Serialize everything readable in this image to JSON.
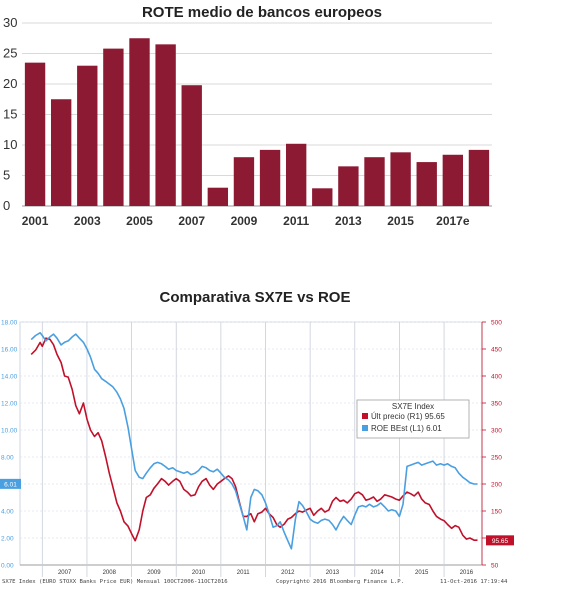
{
  "chart_data": [
    {
      "type": "bar",
      "title": "ROTE medio de bancos europeos",
      "categories": [
        "2001",
        "2002",
        "2003",
        "2004",
        "2005",
        "2006",
        "2007",
        "2008",
        "2009",
        "2010",
        "2011",
        "2012",
        "2013",
        "2014",
        "2015",
        "2016",
        "2017e",
        "2018e"
      ],
      "x_tick_labels": [
        "2001",
        "2003",
        "2005",
        "2007",
        "2009",
        "2011",
        "2013",
        "2015",
        "2017e"
      ],
      "values": [
        23.5,
        17.5,
        23.0,
        25.8,
        27.5,
        26.5,
        19.8,
        3.0,
        8.0,
        9.2,
        10.2,
        2.9,
        6.5,
        8.0,
        8.8,
        7.2,
        8.4,
        9.2
      ],
      "ylim": [
        0,
        30
      ],
      "yticks": [
        0,
        5,
        10,
        15,
        20,
        25,
        30
      ],
      "grid": true,
      "color": "#8b1a32"
    },
    {
      "type": "line",
      "title": "Comparativa SX7E vs ROE",
      "left_axis": {
        "ylim": [
          0,
          18
        ],
        "ticks": [
          "0.00",
          "2.00",
          "4.00",
          "6.00",
          "8.00",
          "10.00",
          "12.00",
          "14.00",
          "16.00",
          "18.00"
        ],
        "color": "#4a9fe0",
        "current_label": "6.01"
      },
      "right_axis": {
        "ylim": [
          50,
          500
        ],
        "ticks": [
          "50",
          "100",
          "150",
          "200",
          "250",
          "300",
          "350",
          "400",
          "450",
          "500"
        ],
        "color": "#c0102a",
        "current_label": "95.65"
      },
      "x_labels": [
        "2007",
        "2008",
        "2009",
        "2010",
        "2011",
        "2012",
        "2013",
        "2014",
        "2015",
        "2016"
      ],
      "xlim": [
        2006.5,
        2016.85
      ],
      "legend": {
        "title": "SX7E Index",
        "placement": "right",
        "rows": [
          {
            "text": "Últ precio  (R1) 95.65",
            "color": "#c0102a"
          },
          {
            "text": "ROE BEst   (L1)    6.01",
            "color": "#4a9fe0"
          }
        ]
      },
      "footer_left": "SX7E Index (EURO STOXX Banks Price EUR)  Mensual 10OCT2006-11OCT2016",
      "footer_center": "Copyright© 2016 Bloomberg Finance L.P.",
      "footer_right": "11-Oct-2016 17:19:44",
      "series": [
        {
          "name": "Últ precio",
          "axis": "right",
          "color": "#c0102a",
          "x": [
            2006.75,
            2006.85,
            2006.95,
            2007.0,
            2007.08,
            2007.17,
            2007.25,
            2007.33,
            2007.42,
            2007.5,
            2007.58,
            2007.67,
            2007.75,
            2007.83,
            2007.92,
            2008.0,
            2008.08,
            2008.17,
            2008.25,
            2008.33,
            2008.42,
            2008.5,
            2008.58,
            2008.67,
            2008.75,
            2008.83,
            2008.92,
            2009.0,
            2009.08,
            2009.17,
            2009.25,
            2009.33,
            2009.42,
            2009.5,
            2009.58,
            2009.67,
            2009.75,
            2009.83,
            2009.92,
            2010.0,
            2010.08,
            2010.17,
            2010.25,
            2010.33,
            2010.42,
            2010.5,
            2010.58,
            2010.67,
            2010.75,
            2010.83,
            2010.92,
            2011.0,
            2011.08,
            2011.17,
            2011.25,
            2011.33,
            2011.42,
            2011.5,
            2011.58,
            2011.67,
            2011.75,
            2011.83,
            2011.92,
            2012.0,
            2012.08,
            2012.17,
            2012.25,
            2012.33,
            2012.42,
            2012.5,
            2012.58,
            2012.67,
            2012.75,
            2012.83,
            2012.92,
            2013.0,
            2013.08,
            2013.17,
            2013.25,
            2013.33,
            2013.42,
            2013.5,
            2013.58,
            2013.67,
            2013.75,
            2013.83,
            2013.92,
            2014.0,
            2014.08,
            2014.17,
            2014.25,
            2014.33,
            2014.42,
            2014.5,
            2014.58,
            2014.67,
            2014.75,
            2014.83,
            2014.92,
            2015.0,
            2015.08,
            2015.17,
            2015.25,
            2015.33,
            2015.42,
            2015.5,
            2015.58,
            2015.67,
            2015.75,
            2015.83,
            2015.92,
            2016.0,
            2016.08,
            2016.17,
            2016.25,
            2016.33,
            2016.42,
            2016.5,
            2016.58,
            2016.67,
            2016.75
          ],
          "y": [
            440,
            448,
            462,
            455,
            470,
            468,
            458,
            440,
            425,
            400,
            398,
            375,
            345,
            330,
            350,
            320,
            300,
            288,
            295,
            280,
            250,
            220,
            195,
            165,
            150,
            130,
            122,
            108,
            95,
            115,
            150,
            175,
            180,
            192,
            200,
            210,
            205,
            198,
            205,
            210,
            205,
            190,
            185,
            178,
            180,
            195,
            205,
            210,
            198,
            190,
            200,
            205,
            210,
            215,
            210,
            195,
            165,
            140,
            140,
            145,
            130,
            145,
            148,
            155,
            145,
            138,
            125,
            120,
            126,
            135,
            138,
            145,
            150,
            148,
            152,
            155,
            142,
            150,
            155,
            148,
            152,
            168,
            175,
            168,
            170,
            165,
            172,
            182,
            185,
            180,
            170,
            172,
            176,
            168,
            172,
            180,
            178,
            176,
            172,
            170,
            178,
            185,
            182,
            178,
            185,
            172,
            165,
            162,
            150,
            140,
            135,
            132,
            125,
            118,
            123,
            120,
            105,
            98,
            100,
            96,
            96
          ]
        },
        {
          "name": "ROE BEst",
          "axis": "left",
          "color": "#4a9fe0",
          "x": [
            2006.75,
            2006.85,
            2006.95,
            2007.0,
            2007.08,
            2007.17,
            2007.25,
            2007.33,
            2007.42,
            2007.5,
            2007.58,
            2007.67,
            2007.75,
            2007.83,
            2007.92,
            2008.0,
            2008.08,
            2008.17,
            2008.25,
            2008.33,
            2008.42,
            2008.5,
            2008.58,
            2008.67,
            2008.75,
            2008.83,
            2008.92,
            2009.0,
            2009.08,
            2009.17,
            2009.25,
            2009.33,
            2009.42,
            2009.5,
            2009.58,
            2009.67,
            2009.75,
            2009.83,
            2009.92,
            2010.0,
            2010.08,
            2010.17,
            2010.25,
            2010.33,
            2010.42,
            2010.5,
            2010.58,
            2010.67,
            2010.75,
            2010.83,
            2010.92,
            2011.0,
            2011.08,
            2011.17,
            2011.25,
            2011.33,
            2011.42,
            2011.5,
            2011.58,
            2011.67,
            2011.75,
            2011.83,
            2011.92,
            2012.0,
            2012.08,
            2012.17,
            2012.25,
            2012.33,
            2012.42,
            2012.5,
            2012.58,
            2012.67,
            2012.75,
            2012.83,
            2012.92,
            2013.0,
            2013.08,
            2013.17,
            2013.25,
            2013.33,
            2013.42,
            2013.5,
            2013.58,
            2013.67,
            2013.75,
            2013.83,
            2013.92,
            2014.0,
            2014.08,
            2014.17,
            2014.25,
            2014.33,
            2014.42,
            2014.5,
            2014.58,
            2014.67,
            2014.75,
            2014.83,
            2014.92,
            2015.0,
            2015.08,
            2015.17,
            2015.25,
            2015.33,
            2015.42,
            2015.5,
            2015.58,
            2015.67,
            2015.75,
            2015.83,
            2015.92,
            2016.0,
            2016.08,
            2016.17,
            2016.25,
            2016.33,
            2016.42,
            2016.5,
            2016.58,
            2016.67,
            2016.75
          ],
          "y": [
            16.7,
            17.0,
            17.2,
            17.0,
            16.6,
            16.9,
            17.1,
            16.8,
            16.3,
            16.5,
            16.6,
            16.9,
            17.1,
            16.8,
            16.5,
            16.0,
            15.4,
            14.5,
            14.2,
            13.8,
            13.6,
            13.4,
            13.2,
            12.8,
            12.3,
            11.6,
            10.2,
            8.6,
            7.0,
            6.5,
            6.4,
            6.8,
            7.2,
            7.5,
            7.6,
            7.5,
            7.3,
            7.1,
            7.2,
            7.0,
            6.9,
            6.8,
            6.9,
            6.7,
            6.8,
            7.0,
            7.3,
            7.2,
            7.0,
            6.9,
            7.1,
            6.8,
            6.5,
            6.3,
            6.0,
            5.5,
            4.5,
            3.6,
            2.6,
            5.0,
            5.6,
            5.5,
            5.2,
            4.6,
            3.8,
            2.8,
            2.9,
            3.2,
            2.4,
            1.8,
            1.2,
            3.4,
            4.7,
            4.4,
            3.9,
            3.4,
            3.2,
            3.1,
            3.3,
            3.4,
            3.3,
            3.0,
            2.6,
            3.2,
            3.6,
            3.3,
            3.0,
            3.7,
            4.3,
            4.4,
            4.3,
            4.5,
            4.3,
            4.4,
            4.6,
            4.3,
            4.0,
            4.1,
            4.0,
            3.6,
            4.5,
            7.3,
            7.4,
            7.5,
            7.6,
            7.4,
            7.5,
            7.6,
            7.7,
            7.4,
            7.5,
            7.4,
            7.5,
            7.3,
            7.2,
            6.8,
            6.5,
            6.3,
            6.1,
            6.0,
            6.0
          ]
        }
      ]
    }
  ]
}
